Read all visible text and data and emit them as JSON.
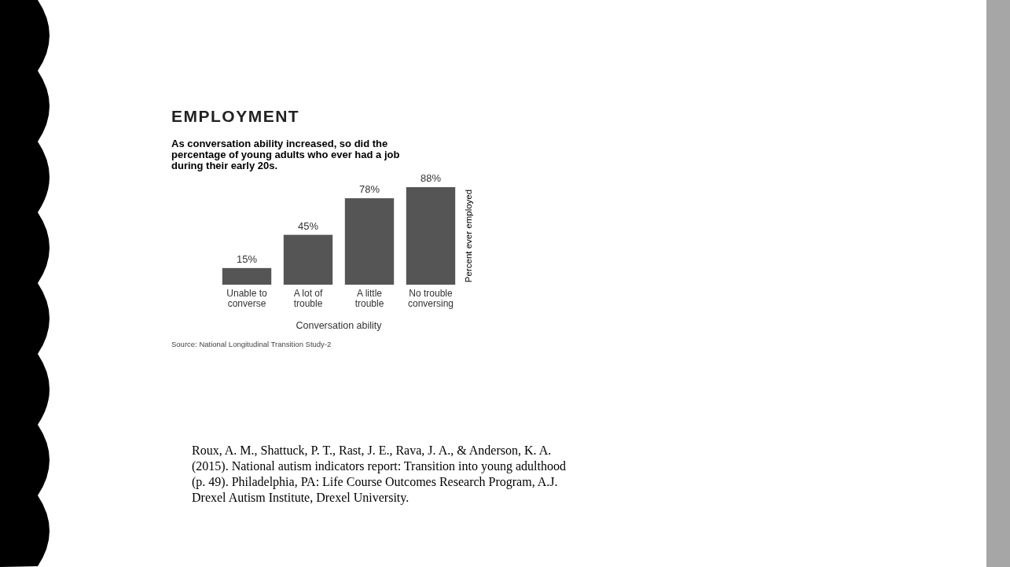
{
  "chart_data": {
    "type": "bar",
    "title": "EMPLOYMENT",
    "subtitle": "As conversation ability increased, so did the percentage of young adults who ever had a job during their early 20s.",
    "categories": [
      "Unable to converse",
      "A lot of trouble",
      "A little trouble",
      "No trouble conversing"
    ],
    "values": [
      15,
      45,
      78,
      88
    ],
    "value_labels": [
      "15%",
      "45%",
      "78%",
      "88%"
    ],
    "color": "#555555",
    "xlabel": "Conversation ability",
    "ylabel": "Percent ever employed",
    "relative": false,
    "annotations": [
      "Source: National Longitudinal Transition Study-2",
      "Roux, A. M., Shattuck, P. T., Rast, J. E., Rava, J. A., & Anderson, K. A. (2015). National autism indicators report: Transition into young adulthood (p. 49). Philadelphia, PA: Life Course Outcomes Research Program, A.J. Drexel Autism Institute, Drexel University."
    ]
  }
}
